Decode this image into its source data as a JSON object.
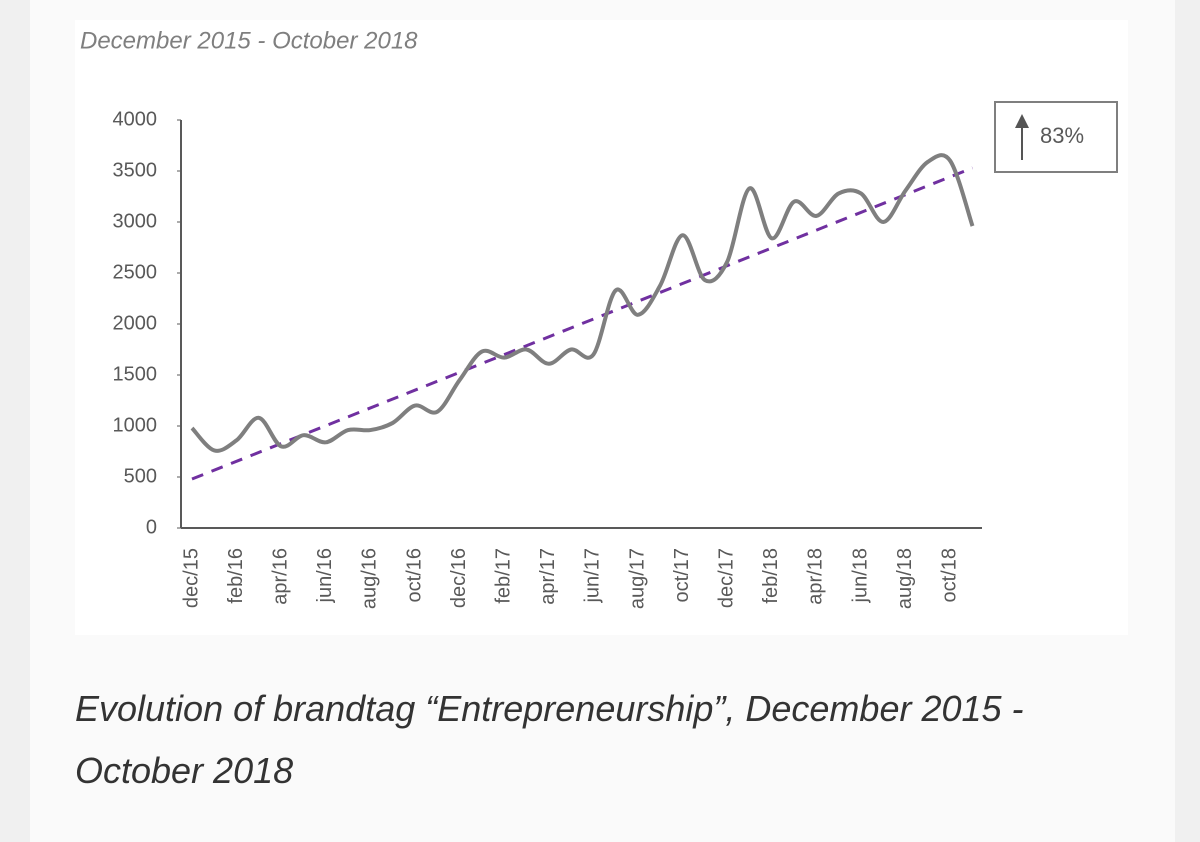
{
  "chart_data": {
    "type": "line",
    "title": "December 2015 - October 2018",
    "caption": "Evolution of brandtag “Entrepreneurship”, December 2015 - October 2018",
    "categories": [
      "dec/15",
      null,
      "feb/16",
      null,
      "apr/16",
      null,
      "jun/16",
      null,
      "aug/16",
      null,
      "oct/16",
      null,
      "dec/16",
      null,
      "feb/17",
      null,
      "apr/17",
      null,
      "jun/17",
      null,
      "aug/17",
      null,
      "oct/17",
      null,
      "dec/17",
      null,
      "feb/18",
      null,
      "apr/18",
      null,
      "jun/18",
      null,
      "aug/18",
      null,
      "oct/18",
      null
    ],
    "values": [
      980,
      760,
      860,
      1080,
      800,
      910,
      840,
      960,
      960,
      1030,
      1200,
      1140,
      1450,
      1730,
      1670,
      1750,
      1610,
      1750,
      1700,
      2330,
      2090,
      2380,
      2870,
      2430,
      2610,
      3330,
      2840,
      3200,
      3060,
      3280,
      3280,
      3000,
      3310,
      3590,
      3600,
      2960
    ],
    "color": "#7f7f7f",
    "trendline": {
      "start": 480,
      "end": 3530,
      "color": "#7030a0"
    },
    "annotation": "83%",
    "ylim": [
      0,
      4000
    ],
    "yticks": [
      0,
      500,
      1000,
      1500,
      2000,
      2500,
      3000,
      3500,
      4000
    ]
  }
}
